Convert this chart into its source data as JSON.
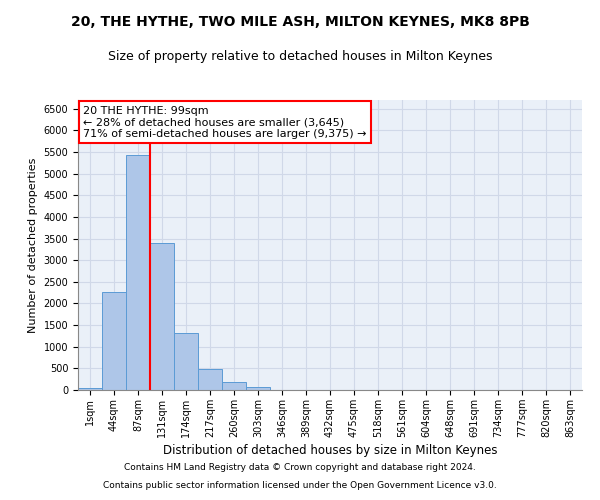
{
  "title1": "20, THE HYTHE, TWO MILE ASH, MILTON KEYNES, MK8 8PB",
  "title2": "Size of property relative to detached houses in Milton Keynes",
  "xlabel": "Distribution of detached houses by size in Milton Keynes",
  "ylabel": "Number of detached properties",
  "categories": [
    "1sqm",
    "44sqm",
    "87sqm",
    "131sqm",
    "174sqm",
    "217sqm",
    "260sqm",
    "303sqm",
    "346sqm",
    "389sqm",
    "432sqm",
    "475sqm",
    "518sqm",
    "561sqm",
    "604sqm",
    "648sqm",
    "691sqm",
    "734sqm",
    "777sqm",
    "820sqm",
    "863sqm"
  ],
  "bar_heights": [
    50,
    2270,
    5430,
    3390,
    1310,
    480,
    175,
    60,
    5,
    2,
    1,
    1,
    0,
    0,
    0,
    0,
    0,
    0,
    0,
    0,
    0
  ],
  "bar_color": "#aec6e8",
  "bar_edge_color": "#5b9bd5",
  "vline_x_index": 2,
  "vline_color": "red",
  "annotation_text": "20 THE HYTHE: 99sqm\n← 28% of detached houses are smaller (3,645)\n71% of semi-detached houses are larger (9,375) →",
  "annotation_box_color": "white",
  "annotation_box_edge_color": "red",
  "ylim": [
    0,
    6700
  ],
  "yticks": [
    0,
    500,
    1000,
    1500,
    2000,
    2500,
    3000,
    3500,
    4000,
    4500,
    5000,
    5500,
    6000,
    6500
  ],
  "grid_color": "#d0d8e8",
  "background_color": "#eaf0f8",
  "footnote1": "Contains HM Land Registry data © Crown copyright and database right 2024.",
  "footnote2": "Contains public sector information licensed under the Open Government Licence v3.0.",
  "title1_fontsize": 10,
  "title2_fontsize": 9,
  "xlabel_fontsize": 8.5,
  "ylabel_fontsize": 8,
  "tick_fontsize": 7,
  "annotation_fontsize": 8,
  "footnote_fontsize": 6.5
}
